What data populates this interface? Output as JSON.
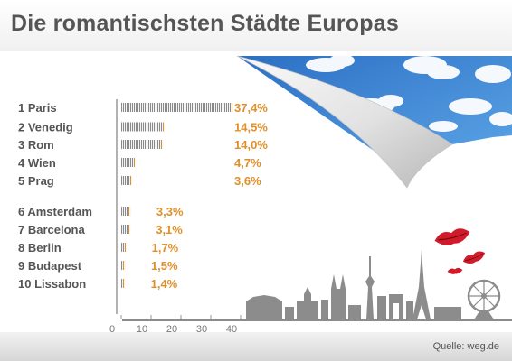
{
  "title": "Die romantischsten Städte Europas",
  "source": "Quelle: weg.de",
  "colors": {
    "bar_gray": "#8a8a8a",
    "bar_orange": "#e0902a",
    "value_text": "#e0902a",
    "label_text": "#555555",
    "skyline": "#8c8c8c",
    "lips": "#d11a2a"
  },
  "chart_data": {
    "type": "bar",
    "orientation": "horizontal",
    "categories": [
      "1 Paris",
      "2 Venedig",
      "3 Rom",
      "4 Wien",
      "5 Prag",
      "6 Amsterdam",
      "7 Barcelona",
      "8 Berlin",
      "9 Budapest",
      "10 Lissabon"
    ],
    "values": [
      37.4,
      14.5,
      14.0,
      4.7,
      3.6,
      3.3,
      3.1,
      1.7,
      1.5,
      1.4
    ],
    "value_labels": [
      "37,4%",
      "14,5%",
      "14,0%",
      "4,7%",
      "3,6%",
      "3,3%",
      "3,1%",
      "1,7%",
      "1,5%",
      "1,4%"
    ],
    "xlim": [
      0,
      40
    ],
    "xticks": [
      0,
      10,
      20,
      30,
      40
    ],
    "xtick_labels": [
      "0",
      "10",
      "20",
      "30",
      "40"
    ],
    "xlabel": "",
    "ylabel": "",
    "grid": false,
    "legend": "none"
  }
}
